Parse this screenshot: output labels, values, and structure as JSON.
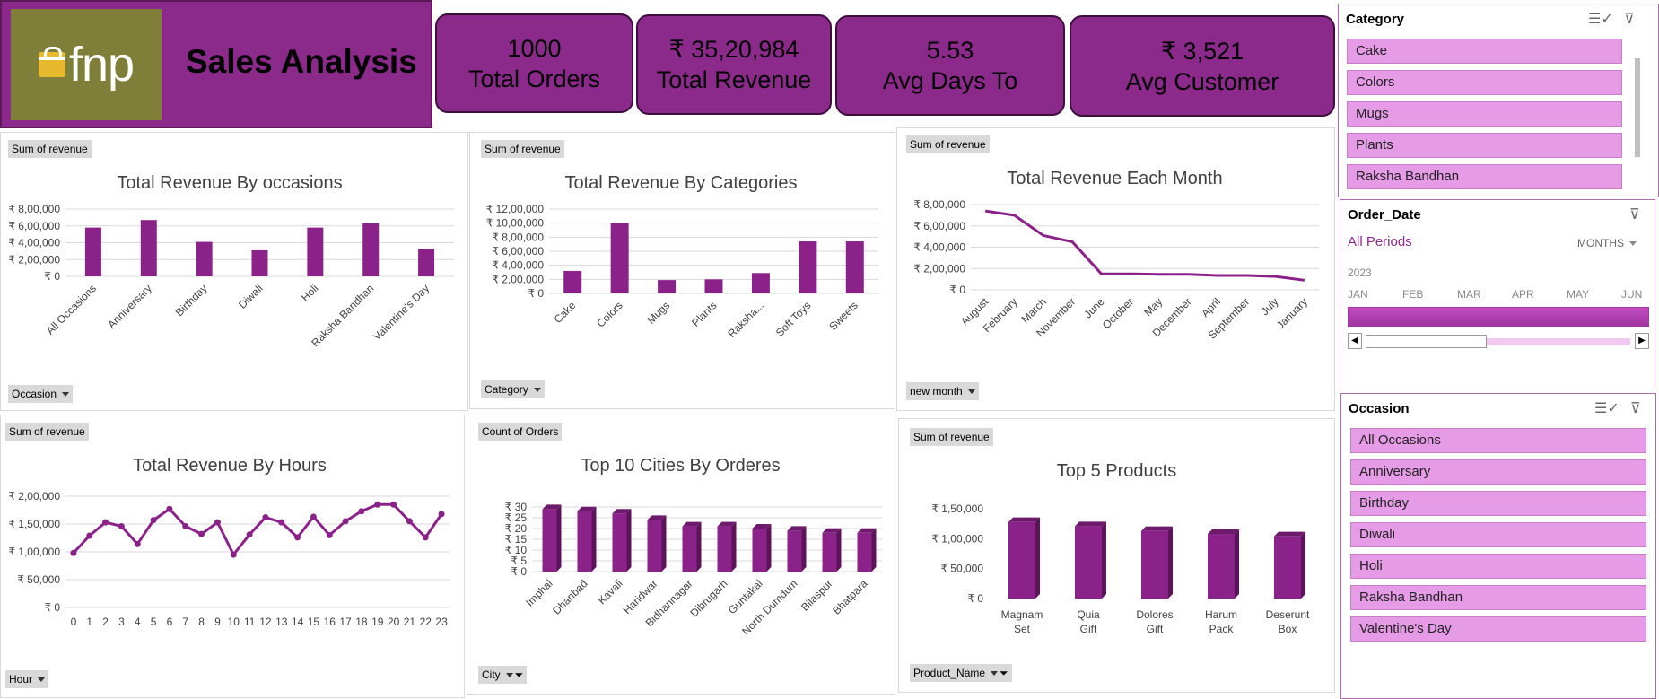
{
  "header": {
    "logo_text": "fnp",
    "title": "Sales Analysis"
  },
  "kpis": [
    {
      "value": "1000",
      "label": "Total Orders"
    },
    {
      "value": "₹ 35,20,984",
      "label": "Total Revenue"
    },
    {
      "value": "5.53",
      "label": "Avg Days To"
    },
    {
      "value": "₹ 3,521",
      "label": "Avg Customer"
    }
  ],
  "colors": {
    "accent": "#8c2a8c",
    "bar": "#8b2289",
    "slicer_item": "#e59be5",
    "logo_bg": "#7f7f3a"
  },
  "charts": {
    "occasions": {
      "field_button": "Sum of revenue",
      "filter_button": "Occasion"
    },
    "categories": {
      "field_button": "Sum of revenue",
      "filter_button": "Category"
    },
    "month": {
      "field_button": "Sum of revenue",
      "filter_button": "new month"
    },
    "hours": {
      "field_button": "Sum of revenue",
      "filter_button": "Hour"
    },
    "cities": {
      "field_button": "Count of Orders",
      "filter_button": "City"
    },
    "products": {
      "field_button": "Sum of revenue",
      "filter_button": "Product_Name"
    }
  },
  "chart_data": [
    {
      "id": "occasions",
      "type": "bar",
      "title": "Total Revenue By occasions",
      "categories": [
        "All Occasions",
        "Anniversary",
        "Birthday",
        "Diwali",
        "Holi",
        "Raksha Bandhan",
        "Valentine's Day"
      ],
      "values": [
        580000,
        670000,
        410000,
        310000,
        580000,
        630000,
        330000
      ],
      "ylim": [
        0,
        800000
      ],
      "yticks": [
        "₹ 0",
        "₹ 2,00,000",
        "₹ 4,00,000",
        "₹ 6,00,000",
        "₹ 8,00,000"
      ],
      "grid": true
    },
    {
      "id": "categories",
      "type": "bar",
      "title": "Total Revenue By Categories",
      "categories": [
        "Cake",
        "Colors",
        "Mugs",
        "Plants",
        "Raksha...",
        "Soft Toys",
        "Sweets"
      ],
      "values": [
        320000,
        1000000,
        190000,
        200000,
        290000,
        740000,
        740000
      ],
      "ylim": [
        0,
        1200000
      ],
      "yticks": [
        "₹ 0",
        "₹ 2,00,000",
        "₹ 4,00,000",
        "₹ 6,00,000",
        "₹ 8,00,000",
        "₹ 10,00,000",
        "₹ 12,00,000"
      ],
      "grid": true
    },
    {
      "id": "month",
      "type": "line",
      "title": "Total Revenue Each Month",
      "categories": [
        "August",
        "February",
        "March",
        "November",
        "June",
        "October",
        "May",
        "December",
        "April",
        "September",
        "July",
        "January"
      ],
      "values": [
        740000,
        700000,
        510000,
        450000,
        150000,
        150000,
        145000,
        145000,
        135000,
        135000,
        125000,
        90000
      ],
      "ylim": [
        0,
        800000
      ],
      "yticks": [
        "₹ 0",
        "₹ 2,00,000",
        "₹ 4,00,000",
        "₹ 6,00,000",
        "₹ 8,00,000"
      ],
      "grid": true
    },
    {
      "id": "hours",
      "type": "line",
      "title": "Total Revenue By Hours",
      "categories": [
        "0",
        "1",
        "2",
        "3",
        "4",
        "5",
        "6",
        "7",
        "8",
        "9",
        "10",
        "11",
        "12",
        "13",
        "14",
        "15",
        "16",
        "17",
        "18",
        "19",
        "20",
        "21",
        "22",
        "23"
      ],
      "values": [
        98000,
        129000,
        153000,
        146000,
        114000,
        157000,
        177000,
        146000,
        132000,
        153000,
        95000,
        131000,
        162000,
        153000,
        126000,
        163000,
        130000,
        155000,
        173000,
        185000,
        185000,
        155000,
        126000,
        168000
      ],
      "ylim": [
        0,
        200000
      ],
      "yticks": [
        "₹ 0",
        "₹ 50,000",
        "₹ 1,00,000",
        "₹ 1,50,000",
        "₹ 2,00,000"
      ],
      "grid": true
    },
    {
      "id": "cities",
      "type": "bar",
      "title": "Top 10 Cities By Orderes",
      "categories": [
        "Imphal",
        "Dhanbad",
        "Kavali",
        "Haridwar",
        "Bidhannagar",
        "Dibrugarh",
        "Guntakal",
        "North Dumdum",
        "Bilaspur",
        "Bhatpara"
      ],
      "values": [
        29,
        28,
        27,
        24,
        21,
        21,
        20,
        19,
        18,
        18
      ],
      "ylim": [
        0,
        30
      ],
      "yticks": [
        "₹ 0",
        "₹ 5",
        "₹ 10",
        "₹ 15",
        "₹ 20",
        "₹ 25",
        "₹ 30"
      ],
      "grid": true
    },
    {
      "id": "products",
      "type": "bar",
      "title": "Top 5 Products",
      "categories": [
        "Magnam Set",
        "Quia Gift",
        "Dolores Gift",
        "Harum Pack",
        "Deserunt Box"
      ],
      "values": [
        128000,
        121000,
        113000,
        108000,
        104000
      ],
      "ylim": [
        0,
        150000
      ],
      "yticks": [
        "₹ 0",
        "₹ 50,000",
        "₹ 1,00,000",
        "₹ 1,50,000"
      ],
      "grid": false
    }
  ],
  "slicers": {
    "category": {
      "title": "Category",
      "items": [
        "Cake",
        "Colors",
        "Mugs",
        "Plants",
        "Raksha Bandhan"
      ]
    },
    "order_date": {
      "title": "Order_Date",
      "all_periods": "All Periods",
      "level": "MONTHS",
      "year": "2023",
      "months": [
        "JAN",
        "FEB",
        "MAR",
        "APR",
        "MAY",
        "JUN"
      ]
    },
    "occasion": {
      "title": "Occasion",
      "items": [
        "All Occasions",
        "Anniversary",
        "Birthday",
        "Diwali",
        "Holi",
        "Raksha Bandhan",
        "Valentine's Day"
      ]
    }
  }
}
